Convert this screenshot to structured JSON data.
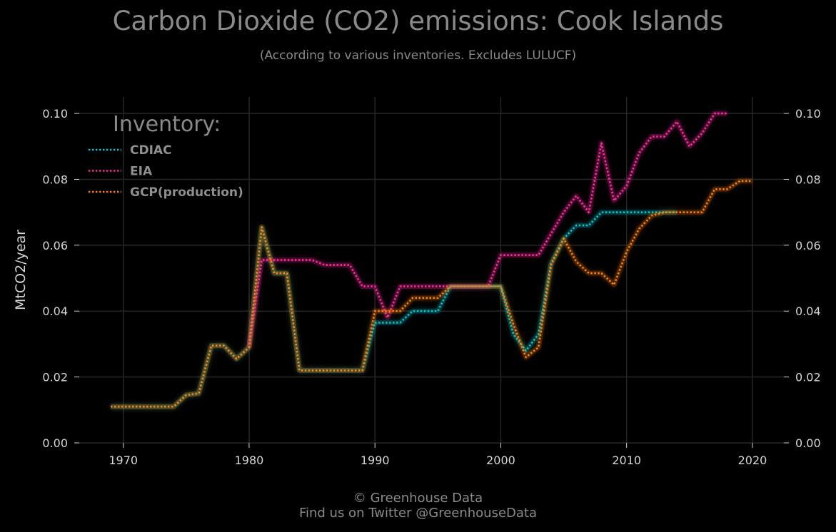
{
  "header": {
    "title": "Carbon Dioxide (CO2) emissions: Cook Islands",
    "subtitle": "(According to various inventories. Excludes LULUCF)"
  },
  "footer": {
    "line1": "© Greenhouse Data",
    "line2": "Find us on Twitter @GreenhouseData"
  },
  "chart_data": {
    "type": "line",
    "title": "Carbon Dioxide (CO2) emissions: Cook Islands",
    "subtitle": "(According to various inventories. Excludes LULUCF)",
    "xlabel": "",
    "ylabel": "MtCO2/year",
    "xlim": [
      1966.5,
      2022.5
    ],
    "ylim": [
      0,
      0.105
    ],
    "x_ticks": [
      "1970",
      "1980",
      "1990",
      "2000",
      "2010",
      "2020"
    ],
    "y_ticks": [
      "0.00",
      "0.02",
      "0.04",
      "0.06",
      "0.08",
      "0.10"
    ],
    "grid": true,
    "legend": {
      "title": "Inventory:",
      "position": "top-left"
    },
    "series": [
      {
        "name": "CDIAC",
        "color": "#00c8d2",
        "x": [
          1969,
          1970,
          1971,
          1972,
          1973,
          1974,
          1975,
          1976,
          1977,
          1978,
          1979,
          1980,
          1981,
          1982,
          1983,
          1984,
          1985,
          1986,
          1987,
          1988,
          1989,
          1990,
          1991,
          1992,
          1993,
          1994,
          1995,
          1996,
          1997,
          1998,
          1999,
          2000,
          2001,
          2002,
          2003,
          2004,
          2005,
          2006,
          2007,
          2008,
          2009,
          2010,
          2011,
          2012,
          2013,
          2014
        ],
        "y": [
          0.011,
          0.011,
          0.011,
          0.011,
          0.011,
          0.011,
          0.0145,
          0.015,
          0.0295,
          0.0295,
          0.0255,
          0.029,
          0.0655,
          0.0515,
          0.0515,
          0.022,
          0.022,
          0.022,
          0.022,
          0.022,
          0.022,
          0.0365,
          0.0365,
          0.0365,
          0.04,
          0.04,
          0.04,
          0.0475,
          0.0475,
          0.0475,
          0.0475,
          0.0475,
          0.033,
          0.028,
          0.033,
          0.0545,
          0.062,
          0.066,
          0.066,
          0.07,
          0.07,
          0.07,
          0.07,
          0.07,
          0.07,
          0.07
        ]
      },
      {
        "name": "EIA",
        "color": "#ff2aa0",
        "x": [
          1980,
          1981,
          1982,
          1983,
          1984,
          1985,
          1986,
          1987,
          1988,
          1989,
          1990,
          1991,
          1992,
          1993,
          1994,
          1995,
          1996,
          1997,
          1998,
          1999,
          2000,
          2001,
          2002,
          2003,
          2004,
          2005,
          2006,
          2007,
          2008,
          2009,
          2010,
          2011,
          2012,
          2013,
          2014,
          2015,
          2016,
          2017,
          2018
        ],
        "y": [
          0.029,
          0.0555,
          0.0555,
          0.0555,
          0.0555,
          0.0555,
          0.054,
          0.054,
          0.054,
          0.0475,
          0.0475,
          0.038,
          0.0475,
          0.0475,
          0.0475,
          0.0475,
          0.0475,
          0.0475,
          0.0475,
          0.0475,
          0.057,
          0.057,
          0.057,
          0.057,
          0.0635,
          0.07,
          0.075,
          0.07,
          0.091,
          0.0735,
          0.078,
          0.088,
          0.093,
          0.093,
          0.0975,
          0.09,
          0.094,
          0.1,
          0.1
        ]
      },
      {
        "name": "GCP(production)",
        "color": "#ff7f0e",
        "x": [
          1969,
          1970,
          1971,
          1972,
          1973,
          1974,
          1975,
          1976,
          1977,
          1978,
          1979,
          1980,
          1981,
          1982,
          1983,
          1984,
          1985,
          1986,
          1987,
          1988,
          1989,
          1990,
          1991,
          1992,
          1993,
          1994,
          1995,
          1996,
          1997,
          1998,
          1999,
          2000,
          2001,
          2002,
          2003,
          2004,
          2005,
          2006,
          2007,
          2008,
          2009,
          2010,
          2011,
          2012,
          2013,
          2014,
          2015,
          2016,
          2017,
          2018,
          2019,
          2020
        ],
        "y": [
          0.011,
          0.011,
          0.011,
          0.011,
          0.011,
          0.011,
          0.0145,
          0.015,
          0.0295,
          0.0295,
          0.0255,
          0.029,
          0.0655,
          0.0515,
          0.0515,
          0.022,
          0.022,
          0.022,
          0.022,
          0.022,
          0.022,
          0.04,
          0.04,
          0.04,
          0.044,
          0.044,
          0.044,
          0.0475,
          0.0475,
          0.0475,
          0.0475,
          0.0475,
          0.036,
          0.026,
          0.029,
          0.054,
          0.062,
          0.055,
          0.0515,
          0.0515,
          0.048,
          0.058,
          0.065,
          0.069,
          0.07,
          0.07,
          0.07,
          0.07,
          0.077,
          0.077,
          0.0795,
          0.0795
        ]
      }
    ]
  }
}
